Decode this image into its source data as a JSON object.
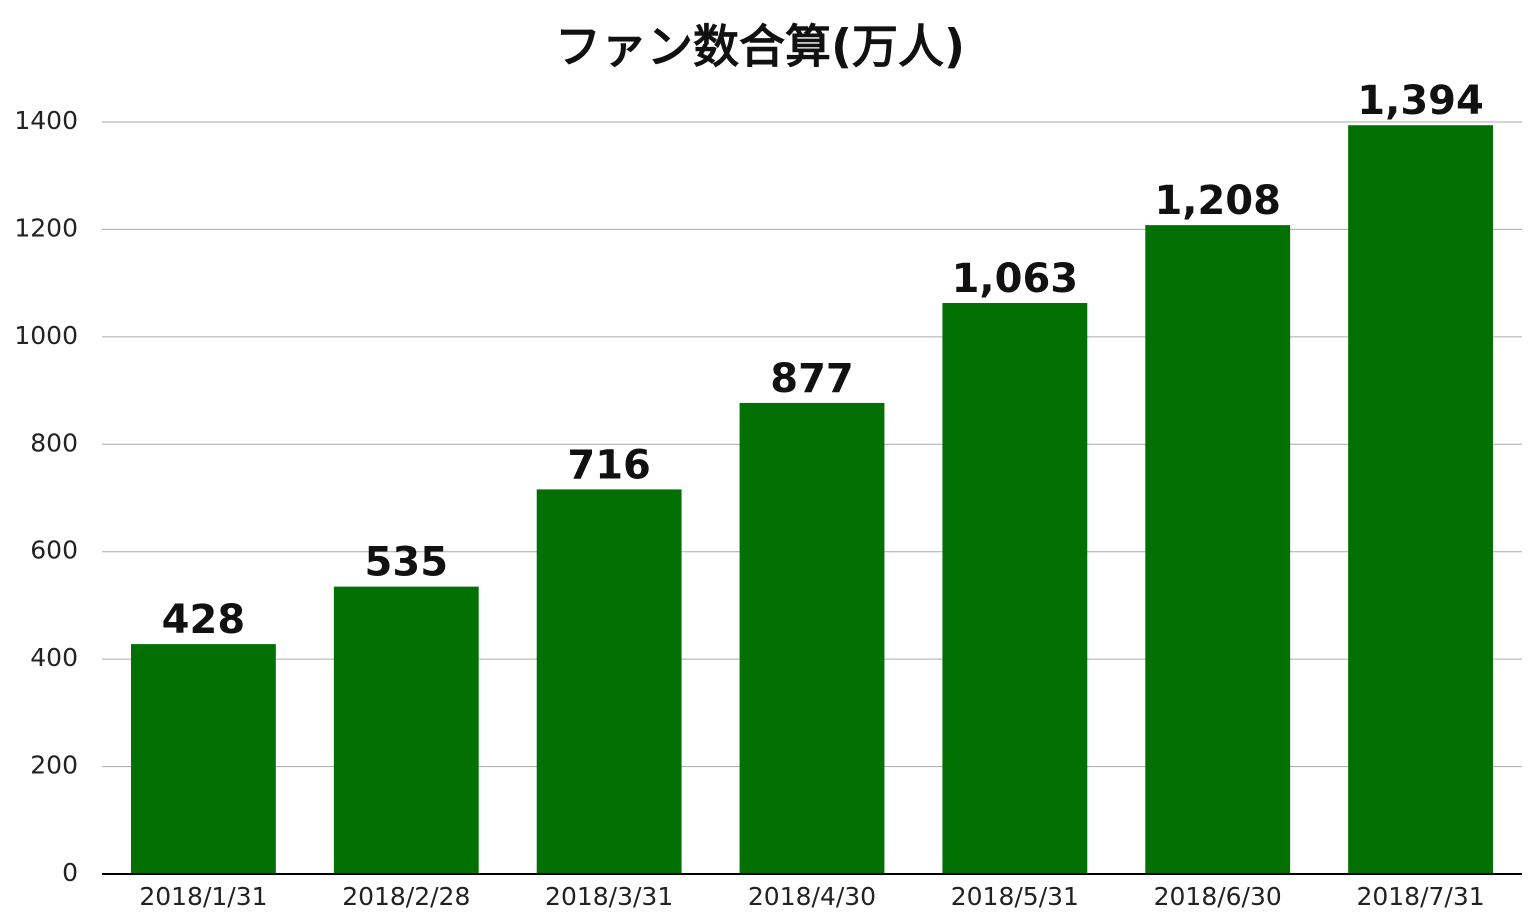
{
  "chart_data": {
    "type": "bar",
    "title": "ファン数合算(万人)",
    "categories": [
      "2018/1/31",
      "2018/2/28",
      "2018/3/31",
      "2018/4/30",
      "2018/5/31",
      "2018/6/30",
      "2018/7/31"
    ],
    "values": [
      428,
      535,
      716,
      877,
      1063,
      1208,
      1394
    ],
    "value_labels": [
      "428",
      "535",
      "716",
      "877",
      "1,063",
      "1,208",
      "1,394"
    ],
    "color": "#037003",
    "ylim": [
      0,
      1400
    ],
    "yticks": [
      0,
      200,
      400,
      600,
      800,
      1000,
      1200,
      1400
    ],
    "grid": true
  }
}
